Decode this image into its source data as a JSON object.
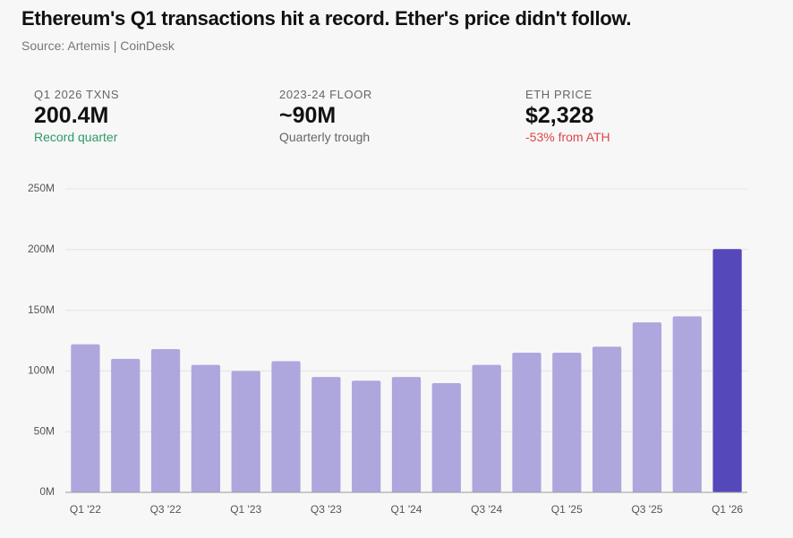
{
  "header": {
    "title": "Ethereum's Q1 transactions hit a record. Ether's price didn't follow.",
    "source": "Source: Artemis | CoinDesk"
  },
  "stats": [
    {
      "label": "Q1 2026 TXNS",
      "value": "200.4M",
      "note": "Record quarter"
    },
    {
      "label": "2023-24 FLOOR",
      "value": "~90M",
      "note": "Quarterly trough"
    },
    {
      "label": "ETH PRICE",
      "value": "$2,328",
      "note": "-53% from ATH"
    }
  ],
  "chart_data": {
    "type": "bar",
    "categories": [
      "Q1 '22",
      null,
      "Q3 '22",
      null,
      "Q1 '23",
      null,
      "Q3 '23",
      null,
      "Q1 '24",
      null,
      "Q3 '24",
      null,
      "Q1 '25",
      null,
      "Q3 '25",
      null,
      "Q1 '26"
    ],
    "values": [
      122,
      110,
      118,
      105,
      100,
      108,
      95,
      92,
      95,
      90,
      105,
      115,
      115,
      120,
      140,
      145,
      200.4
    ],
    "colors": [
      "#aea7de",
      "#aea7de",
      "#aea7de",
      "#aea7de",
      "#aea7de",
      "#aea7de",
      "#aea7de",
      "#aea7de",
      "#aea7de",
      "#aea7de",
      "#aea7de",
      "#aea7de",
      "#aea7de",
      "#aea7de",
      "#aea7de",
      "#aea7de",
      "#5548bb"
    ],
    "ylim": [
      0,
      250
    ],
    "yticks": [
      {
        "value": 0,
        "label": "0M"
      },
      {
        "value": 50,
        "label": "50M"
      },
      {
        "value": 100,
        "label": "100M"
      },
      {
        "value": 150,
        "label": "150M"
      },
      {
        "value": 200,
        "label": "200M"
      },
      {
        "value": 250,
        "label": "250M"
      }
    ],
    "grid": true
  }
}
